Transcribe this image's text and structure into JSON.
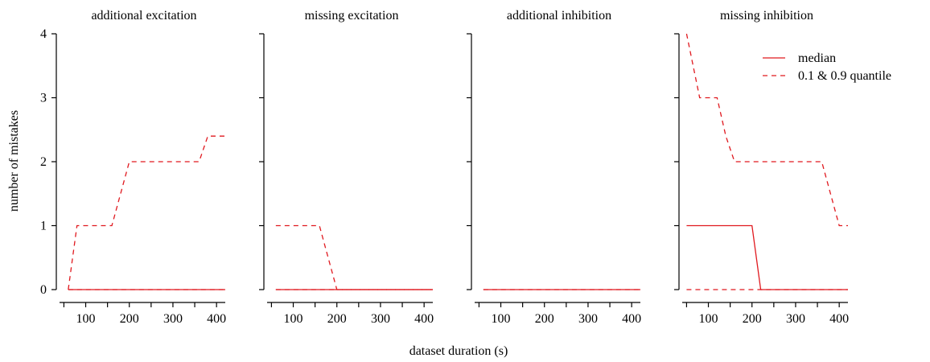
{
  "chart_data": {
    "type": "line",
    "ylabel": "number of mistakes",
    "xlabel": "dataset duration (s)",
    "xlim": [
      40,
      420
    ],
    "ylim": [
      0,
      4
    ],
    "xticks": [
      50,
      100,
      150,
      200,
      250,
      300,
      350,
      400
    ],
    "xticklabels": [
      "100",
      "200",
      "300",
      "400"
    ],
    "xticklabel_values": [
      100,
      200,
      300,
      400
    ],
    "yticks": [
      0,
      1,
      2,
      3,
      4
    ],
    "yticklabels": [
      "0",
      "1",
      "2",
      "3",
      "4"
    ],
    "line_color": "#e0191f",
    "legend": {
      "placement": "top-right",
      "panel": 3,
      "entries": [
        {
          "label": "median",
          "style": "solid"
        },
        {
          "label": "0.1 & 0.9 quantile",
          "style": "dashed"
        }
      ]
    },
    "panels": [
      {
        "title": "additional excitation",
        "series": [
          {
            "style": "solid",
            "x": [
              60,
              420
            ],
            "y": [
              0,
              0
            ]
          },
          {
            "style": "dashed",
            "x": [
              60,
              420
            ],
            "y": [
              0,
              0
            ]
          },
          {
            "style": "dashed",
            "x": [
              60,
              80,
              160,
              180,
              200,
              360,
              380,
              420
            ],
            "y": [
              0,
              1,
              1,
              1.5,
              2,
              2,
              2.4,
              2.4
            ]
          }
        ]
      },
      {
        "title": "missing excitation",
        "series": [
          {
            "style": "solid",
            "x": [
              60,
              420
            ],
            "y": [
              0,
              0
            ]
          },
          {
            "style": "dashed",
            "x": [
              60,
              160,
              200,
              420
            ],
            "y": [
              1,
              1,
              0,
              0
            ]
          },
          {
            "style": "dashed",
            "x": [
              60,
              420
            ],
            "y": [
              0,
              0
            ]
          }
        ]
      },
      {
        "title": "additional inhibition",
        "series": [
          {
            "style": "solid",
            "x": [
              60,
              420
            ],
            "y": [
              0,
              0
            ]
          },
          {
            "style": "dashed",
            "x": [
              60,
              420
            ],
            "y": [
              0,
              0
            ]
          }
        ]
      },
      {
        "title": "missing inhibition",
        "series": [
          {
            "style": "solid",
            "x": [
              50,
              200,
              220,
              420
            ],
            "y": [
              1,
              1,
              0,
              0
            ]
          },
          {
            "style": "dashed",
            "x": [
              50,
              420
            ],
            "y": [
              0,
              0
            ]
          },
          {
            "style": "dashed",
            "x": [
              50,
              80,
              120,
              140,
              160,
              360,
              380,
              400,
              420
            ],
            "y": [
              4,
              3,
              3,
              2.4,
              2,
              2,
              1.5,
              1,
              1
            ]
          }
        ]
      }
    ]
  }
}
